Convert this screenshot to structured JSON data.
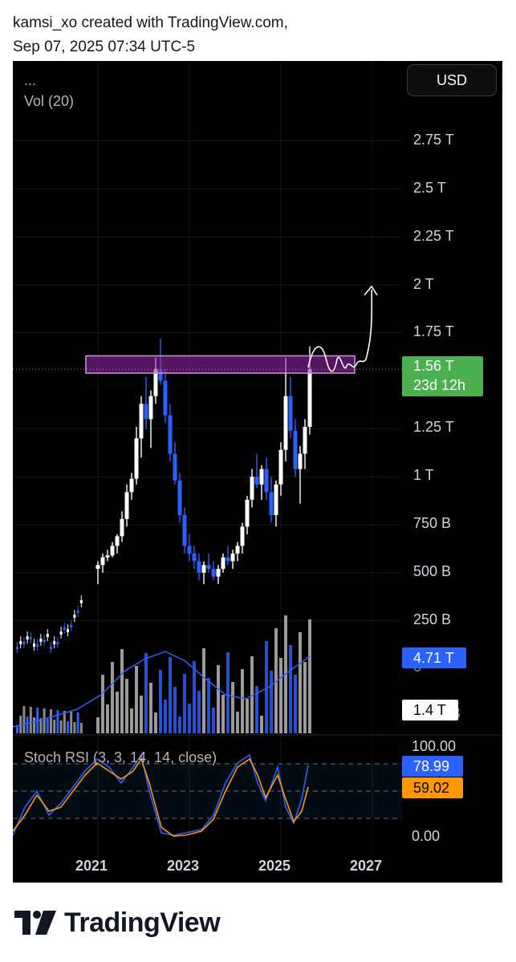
{
  "header": {
    "line1": "kamsi_xo created with TradingView.com,",
    "line2": "Sep 07, 2025 07:34 UTC-5"
  },
  "toolbar": {
    "currency_label": "USD",
    "ellipsis": "...",
    "volume_indicator": "Vol (20)"
  },
  "price_axis": {
    "labels": [
      "2.75 T",
      "2.5 T",
      "2.25 T",
      "2 T",
      "1.75 T",
      "1.25 T",
      "1 T",
      "750 B",
      "500 B",
      "250 B"
    ],
    "current_price": "1.56 T",
    "countdown": "23d 12h",
    "current_price_color": "#4caf50",
    "volume_ma_value": "4.71 T",
    "volume_ma_color": "#2962ff",
    "volume_value": "1.4 T",
    "zero_fragment": "0",
    "b_fragment": "B"
  },
  "stoch_rsi": {
    "label": "Stoch RSI (3, 3, 14, 14, close)",
    "k_value": "78.99",
    "k_color": "#2962ff",
    "d_value": "59.02",
    "d_color": "#ff9800",
    "scale_top": "100.00",
    "scale_bottom": "0.00"
  },
  "time_axis": {
    "labels": [
      "2021",
      "2023",
      "2025",
      "2027"
    ]
  },
  "brand": {
    "name": "TradingView"
  },
  "chart_data": {
    "type": "candlestick",
    "title": "",
    "price_unit": "USD",
    "price_axis_ticks": [
      250,
      500,
      750,
      1000,
      1250,
      1750,
      2000,
      2250,
      2500,
      2750
    ],
    "price_axis_unit_note": "B = billions, 1000 = 1 T",
    "current_price_billions": 1560,
    "resistance_zone_billions": [
      1540,
      1630
    ],
    "up_color": "#ffffff",
    "down_color": "#2962ff",
    "candles_billions_ohlc": [
      [
        520,
        560,
        440,
        540
      ],
      [
        540,
        600,
        500,
        580
      ],
      [
        580,
        620,
        560,
        590
      ],
      [
        590,
        660,
        580,
        640
      ],
      [
        640,
        700,
        600,
        690
      ],
      [
        690,
        820,
        660,
        780
      ],
      [
        780,
        960,
        740,
        920
      ],
      [
        920,
        1020,
        880,
        990
      ],
      [
        990,
        1260,
        960,
        1200
      ],
      [
        1200,
        1420,
        1100,
        1380
      ],
      [
        1380,
        1520,
        1250,
        1300
      ],
      [
        1300,
        1450,
        1150,
        1420
      ],
      [
        1420,
        1620,
        1380,
        1560
      ],
      [
        1560,
        1720,
        1480,
        1500
      ],
      [
        1500,
        1560,
        1280,
        1320
      ],
      [
        1320,
        1380,
        1080,
        1120
      ],
      [
        1120,
        1180,
        960,
        980
      ],
      [
        980,
        1020,
        760,
        800
      ],
      [
        800,
        840,
        600,
        640
      ],
      [
        640,
        700,
        560,
        600
      ],
      [
        600,
        640,
        520,
        560
      ],
      [
        560,
        600,
        460,
        500
      ],
      [
        500,
        560,
        440,
        540
      ],
      [
        540,
        600,
        500,
        520
      ],
      [
        520,
        560,
        460,
        480
      ],
      [
        480,
        540,
        440,
        520
      ],
      [
        520,
        600,
        500,
        580
      ],
      [
        580,
        640,
        540,
        560
      ],
      [
        560,
        620,
        520,
        600
      ],
      [
        600,
        660,
        560,
        640
      ],
      [
        640,
        760,
        600,
        740
      ],
      [
        740,
        900,
        700,
        880
      ],
      [
        880,
        1040,
        840,
        1000
      ],
      [
        1000,
        1120,
        940,
        960
      ],
      [
        960,
        1060,
        880,
        1040
      ],
      [
        1040,
        1100,
        880,
        920
      ],
      [
        920,
        1000,
        760,
        800
      ],
      [
        800,
        980,
        740,
        960
      ],
      [
        960,
        1180,
        900,
        1140
      ],
      [
        1140,
        1620,
        1080,
        1420
      ],
      [
        1420,
        1520,
        1200,
        1240
      ],
      [
        1240,
        1300,
        1000,
        1040
      ],
      [
        1040,
        1160,
        860,
        1120
      ],
      [
        1120,
        1300,
        1040,
        1260
      ],
      [
        1260,
        1680,
        1220,
        1560
      ]
    ],
    "projection": "arrow rising from ~1.56 T toward ~2 T",
    "volume_indicator": {
      "name": "Vol (20)",
      "latest_volume_trillions": 1.4,
      "ma_value_trillions": 4.71
    },
    "stoch_rsi": {
      "name": "Stoch RSI (3, 3, 14, 14, close)",
      "k": 78.99,
      "d": 59.02,
      "range": [
        0,
        100
      ]
    },
    "x_axis_labels": [
      "2021",
      "2023",
      "2025",
      "2027"
    ]
  }
}
